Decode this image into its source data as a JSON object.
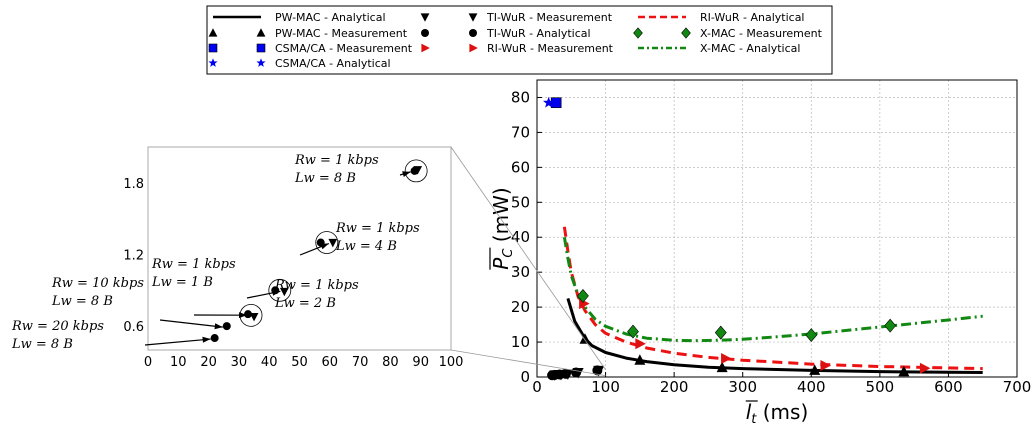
{
  "chart_data": [
    {
      "type": "line",
      "panel": "main",
      "xlabel": "l̄t (ms)",
      "xlabel_main": "l",
      "xlabel_sub": "t",
      "xlabel_unit": " (ms)",
      "ylabel": "P̄C (mW)",
      "ylabel_main": "P",
      "ylabel_sub": "C",
      "ylabel_unit": " (mW)",
      "xlim": [
        0,
        700
      ],
      "ylim": [
        0,
        85
      ],
      "xticks": [
        0,
        100,
        200,
        300,
        400,
        500,
        600,
        700
      ],
      "yticks": [
        0,
        10,
        20,
        30,
        40,
        50,
        60,
        70,
        80
      ],
      "grid": true,
      "series": [
        {
          "name": "PW-MAC - Analytical",
          "kind": "line",
          "color": "#000000",
          "dash": "",
          "x": [
            45,
            55,
            70,
            80,
            100,
            130,
            160,
            200,
            250,
            300,
            400,
            500,
            600,
            650
          ],
          "y": [
            22.5,
            16,
            11,
            9,
            7,
            5.4,
            4.4,
            3.5,
            2.8,
            2.4,
            1.9,
            1.55,
            1.35,
            1.3
          ]
        },
        {
          "name": "PW-MAC - Measurement",
          "kind": "marker",
          "marker": "triangle-up",
          "color": "#000000",
          "x": [
            70,
            150,
            270,
            405,
            535
          ],
          "y": [
            10.8,
            4.8,
            2.7,
            1.9,
            1.5
          ]
        },
        {
          "name": "CSMA/CA - Measurement",
          "kind": "marker",
          "marker": "square",
          "color": "#0000ee",
          "x": [
            28
          ],
          "y": [
            78.5
          ]
        },
        {
          "name": "CSMA/CA - Analytical",
          "kind": "marker",
          "marker": "star",
          "color": "#0000ee",
          "x": [
            17
          ],
          "y": [
            78.5
          ]
        },
        {
          "name": "TI-WuR - Measurement",
          "kind": "marker",
          "marker": "triangle-down",
          "color": "#000000",
          "x": [
            26,
            35,
            45,
            60,
            90
          ],
          "y": [
            0.6,
            0.7,
            0.9,
            1.3,
            1.9
          ]
        },
        {
          "name": "TI-WuR - Analytical",
          "kind": "marker",
          "marker": "circle",
          "color": "#000000",
          "x": [
            22,
            26,
            33,
            42,
            57,
            88
          ],
          "y": [
            0.5,
            0.6,
            0.7,
            0.9,
            1.3,
            1.9
          ]
        },
        {
          "name": "RI-WuR - Measurement",
          "kind": "marker",
          "marker": "triangle-right",
          "color": "#dd1111",
          "x": [
            68,
            150,
            275,
            420,
            565
          ],
          "y": [
            21,
            9.5,
            5.3,
            3.3,
            2.5
          ]
        },
        {
          "name": "RI-WuR - Analytical",
          "kind": "line",
          "color": "#ee1111",
          "dash": "10,6",
          "x": [
            40,
            45,
            50,
            60,
            70,
            85,
            100,
            130,
            160,
            200,
            250,
            300,
            400,
            500,
            600,
            650
          ],
          "y": [
            43,
            36,
            30,
            23,
            19,
            15,
            12.5,
            10,
            8.3,
            6.8,
            5.6,
            4.8,
            3.7,
            3,
            2.6,
            2.4
          ]
        },
        {
          "name": "X-MAC - Measurement",
          "kind": "marker",
          "marker": "diamond",
          "color": "#118811",
          "x": [
            67,
            140,
            268,
            400,
            515
          ],
          "y": [
            23.2,
            13,
            12.7,
            12,
            14.7
          ]
        },
        {
          "name": "X-MAC - Analytical",
          "kind": "line",
          "color": "#118811",
          "dash": "10,4,2,4",
          "x": [
            40,
            45,
            50,
            60,
            70,
            85,
            100,
            130,
            160,
            200,
            230,
            260,
            300,
            350,
            400,
            450,
            500,
            550,
            600,
            650
          ],
          "y": [
            40,
            34,
            29,
            23.5,
            20,
            16.5,
            14.5,
            12.3,
            11.1,
            10.5,
            10.4,
            10.5,
            10.8,
            11.5,
            12.3,
            13.3,
            14.3,
            15.3,
            16.3,
            17.4
          ]
        }
      ]
    },
    {
      "type": "scatter",
      "panel": "inset-zoom",
      "xlim": [
        0,
        100
      ],
      "ylim": [
        0.4,
        2.1
      ],
      "xticks": [
        0,
        10,
        20,
        30,
        40,
        50,
        60,
        70,
        80,
        90,
        100
      ],
      "yticks": [
        0.6,
        1.2,
        1.8
      ],
      "grid": false,
      "series": [
        {
          "name": "TI-WuR - Analytical",
          "marker": "circle",
          "x": [
            22,
            26,
            33,
            42,
            57,
            88
          ],
          "y": [
            0.5,
            0.6,
            0.7,
            0.9,
            1.3,
            1.9
          ]
        },
        {
          "name": "TI-WuR - Measurement",
          "marker": "triangle-down",
          "x": [
            35,
            45,
            61,
            89
          ],
          "y": [
            0.68,
            0.89,
            1.3,
            1.91
          ]
        }
      ],
      "annotations": [
        {
          "line1": "Rw = 20 kbps",
          "line2": "Lw = 8 B",
          "target_x": 22,
          "target_y": 0.5
        },
        {
          "line1": "Rw = 10 kbps",
          "line2": "Lw = 8 B",
          "target_x": 26,
          "target_y": 0.6
        },
        {
          "line1": "Rw = 1 kbps",
          "line2": "Lw = 1 B",
          "target_x": 34,
          "target_y": 0.7
        },
        {
          "line1": "Rw = 1 kbps",
          "line2": "Lw = 2 B",
          "target_x": 45,
          "target_y": 0.9
        },
        {
          "line1": "Rw = 1 kbps",
          "line2": "Lw = 4 B",
          "target_x": 61,
          "target_y": 1.3
        },
        {
          "line1": "Rw = 1 kbps",
          "line2": "Lw = 8 B",
          "target_x": 88,
          "target_y": 1.9
        }
      ]
    }
  ],
  "legend": {
    "placement": "top-center",
    "entries": [
      {
        "label": "PW-MAC - Analytical",
        "series": 0
      },
      {
        "label": "TI-WuR - Measurement",
        "series": 4
      },
      {
        "label": "RI-WuR - Analytical",
        "series": 7
      },
      {
        "label": "PW-MAC - Measurement",
        "series": 1
      },
      {
        "label": "TI-WuR - Analytical",
        "series": 5
      },
      {
        "label": "X-MAC - Measurement",
        "series": 8
      },
      {
        "label": "CSMA/CA - Measurement",
        "series": 2
      },
      {
        "label": "RI-WuR - Measurement",
        "series": 6
      },
      {
        "label": "X-MAC - Analytical",
        "series": 9
      },
      {
        "label": "CSMA/CA - Analytical",
        "series": 3
      }
    ]
  }
}
